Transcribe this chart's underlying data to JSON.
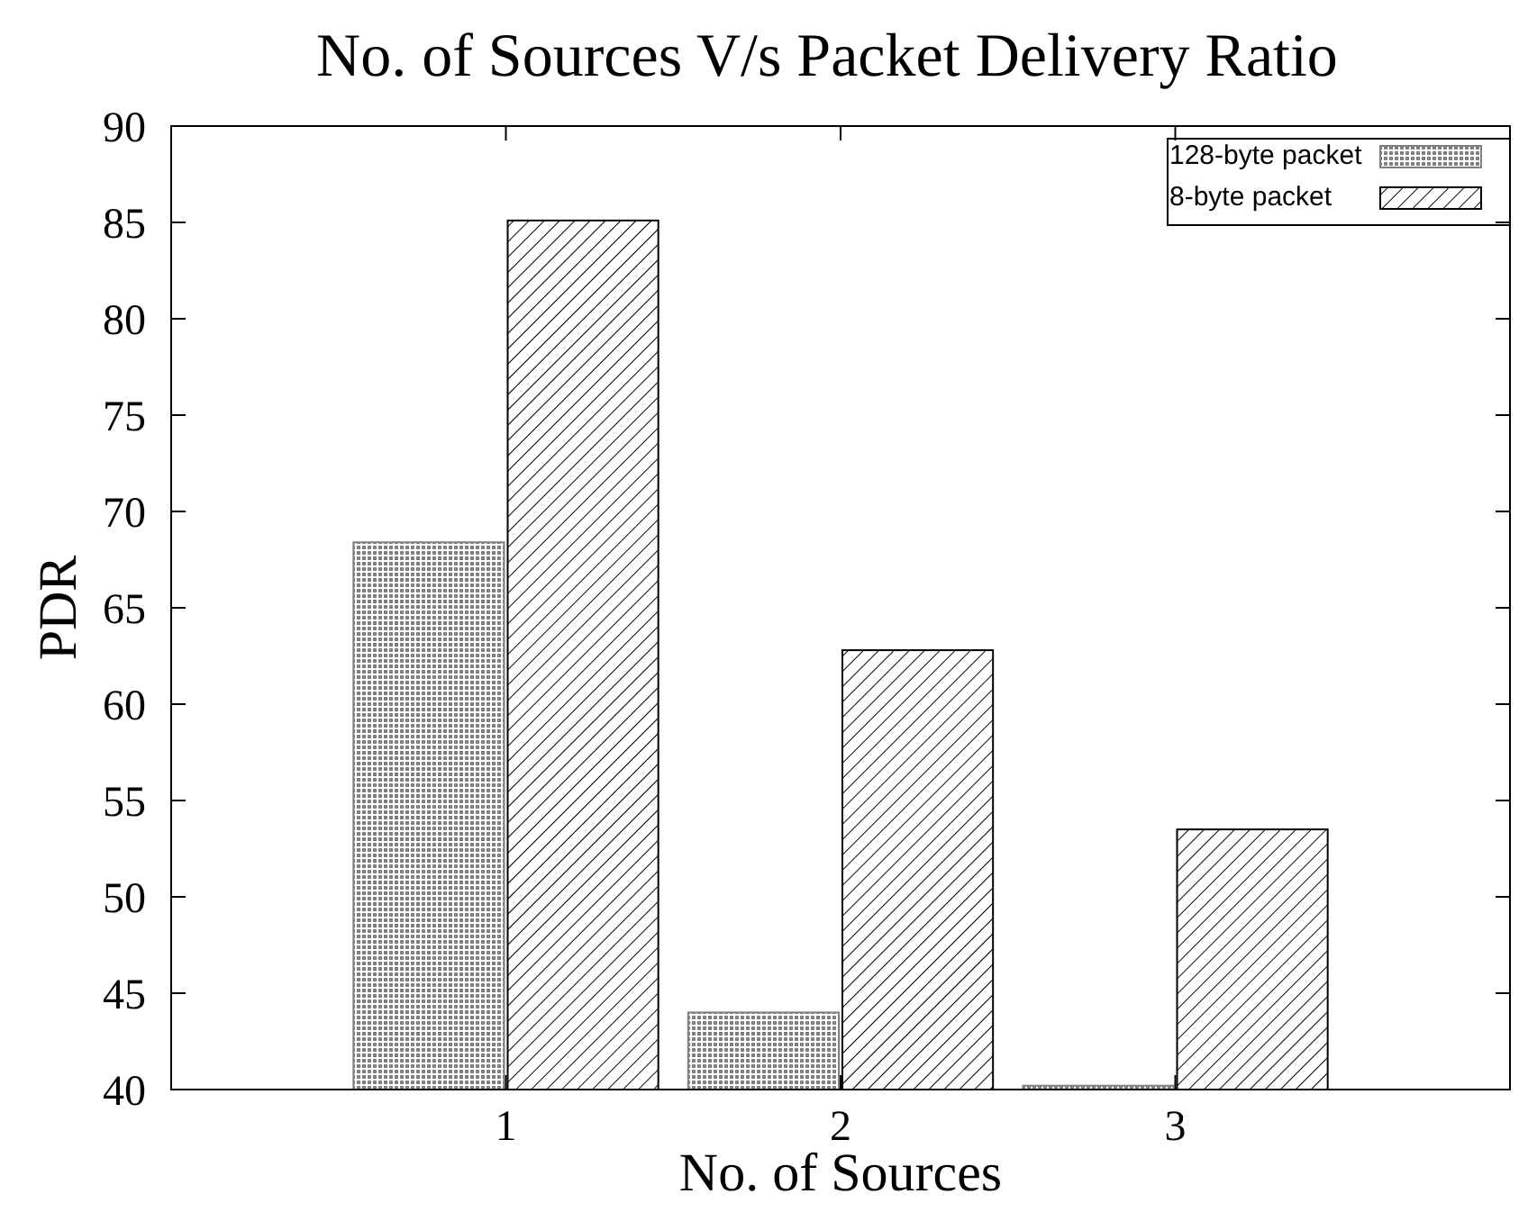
{
  "chart_data": {
    "type": "bar",
    "title": "No. of Sources V/s Packet Delivery Ratio",
    "xlabel": "No. of Sources",
    "ylabel": "PDR",
    "categories": [
      "1",
      "2",
      "3"
    ],
    "series": [
      {
        "name": "128-byte packet",
        "color": "#808080",
        "values": [
          68.4,
          44.0,
          40.2
        ]
      },
      {
        "name": "8-byte packet",
        "color": "#000000",
        "values": [
          85.1,
          62.8,
          53.5
        ]
      }
    ],
    "ylim": [
      40,
      90
    ],
    "yticks": [
      40,
      45,
      50,
      55,
      60,
      65,
      70,
      75,
      80,
      85,
      90
    ],
    "grid": false,
    "legend": "top right"
  }
}
